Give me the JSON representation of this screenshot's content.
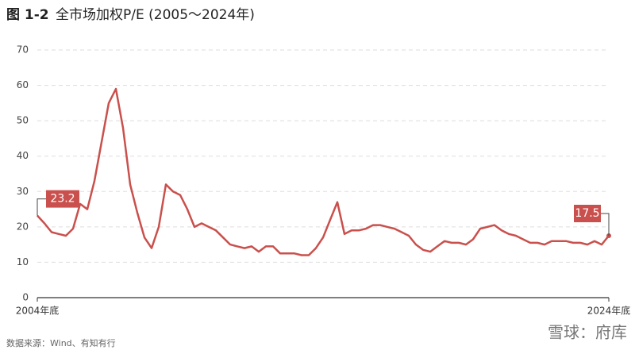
{
  "chart_data": {
    "type": "line",
    "figure_label": "图 1-2",
    "title": "全市场加权P/E (2005～2024年)",
    "source": "数据来源：Wind、有知有行",
    "watermark": "雪球：府库",
    "categories": [
      "2004年底",
      null,
      null,
      null,
      null,
      null,
      null,
      null,
      null,
      null,
      null,
      null,
      null,
      null,
      null,
      null,
      null,
      null,
      null,
      null,
      null,
      null,
      null,
      null,
      null,
      null,
      null,
      null,
      null,
      null,
      null,
      null,
      null,
      null,
      null,
      null,
      null,
      null,
      null,
      null,
      null,
      null,
      null,
      null,
      null,
      null,
      null,
      null,
      null,
      null,
      null,
      null,
      null,
      null,
      null,
      null,
      null,
      null,
      null,
      null,
      null,
      null,
      null,
      null,
      null,
      null,
      null,
      null,
      null,
      null,
      null,
      null,
      null,
      null,
      null,
      null,
      null,
      null,
      null,
      null,
      "2024年底"
    ],
    "series": [
      {
        "name": "全市场加权P/E",
        "color": "#c9504c",
        "values": [
          23.2,
          21,
          18.5,
          18,
          17.5,
          19.5,
          26.5,
          25,
          33,
          44,
          55,
          59,
          48,
          32,
          24,
          17,
          14,
          20,
          32,
          30,
          29,
          25,
          20,
          21,
          20,
          19,
          17,
          15,
          14.5,
          14,
          14.5,
          13,
          14.5,
          14.5,
          12.5,
          12.5,
          12.5,
          12,
          12,
          14,
          17,
          22,
          27,
          18,
          19,
          19,
          19.5,
          20.5,
          20.5,
          20,
          19.5,
          18.5,
          17.5,
          15,
          13.5,
          13,
          14.5,
          16,
          15.5,
          15.5,
          15,
          16.5,
          19.5,
          20,
          20.5,
          19,
          18,
          17.5,
          16.5,
          15.5,
          15.5,
          15,
          16,
          16,
          16,
          15.5,
          15.5,
          15,
          16,
          15,
          17.5
        ]
      }
    ],
    "ylim": [
      0,
      70
    ],
    "yticks": [
      0,
      10,
      20,
      30,
      40,
      50,
      60,
      70
    ],
    "grid": true
  }
}
